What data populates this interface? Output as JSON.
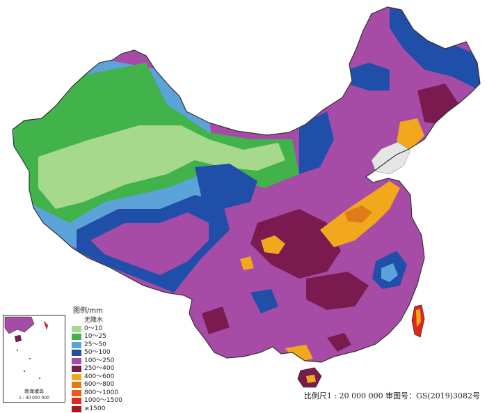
{
  "legend": {
    "title": "图例/mm",
    "items": [
      {
        "label": "无降水",
        "color": "#ffffff"
      },
      {
        "label": "0～10",
        "color": "#a6d98b"
      },
      {
        "label": "10～25",
        "color": "#41b34a"
      },
      {
        "label": "25～50",
        "color": "#5ba3d9"
      },
      {
        "label": "50～100",
        "color": "#1f4fa8"
      },
      {
        "label": "100～250",
        "color": "#a64ca6"
      },
      {
        "label": "250～400",
        "color": "#7a1a4f"
      },
      {
        "label": "400～600",
        "color": "#f2a81d"
      },
      {
        "label": "600～800",
        "color": "#e07b1a"
      },
      {
        "label": "800～1000",
        "color": "#e85a1a"
      },
      {
        "label": "1000～1500",
        "color": "#e0261f"
      },
      {
        "label": "≥1500",
        "color": "#b0141e"
      }
    ]
  },
  "inset": {
    "title": "南海诸岛",
    "scale": "1 : 40 000 000"
  },
  "footer": {
    "scale_text": "比例尺1 : 20 000 000",
    "review_text": "审图号：GS(2019)3082号"
  },
  "colors": {
    "sea": "#d9d9d9",
    "border": "#333333"
  }
}
